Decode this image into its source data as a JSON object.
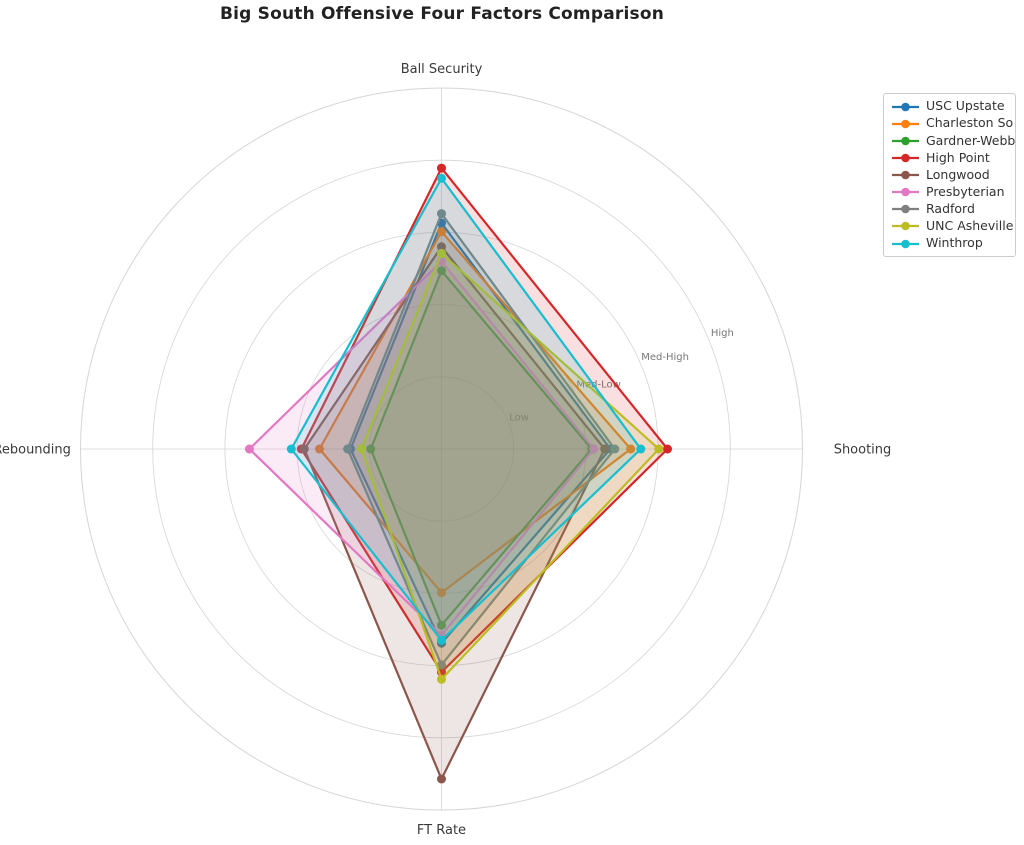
{
  "title": "Big South Offensive Four Factors Comparison",
  "colors": {
    "grid": "#d5d5d5",
    "axis_label_text": "#3a3a3a",
    "tick_label_text": "#777777",
    "title_text": "#222222",
    "legend_border": "#cccccc",
    "background": "#ffffff"
  },
  "legend": {
    "position": "upper right",
    "entries": [
      "USC Upstate",
      "Charleston So",
      "Gardner-Webb",
      "High Point",
      "Longwood",
      "Presbyterian",
      "Radford",
      "UNC Asheville",
      "Winthrop"
    ]
  },
  "chart_data": {
    "type": "radar",
    "projection": "polar",
    "title": "Big South Offensive Four Factors Comparison",
    "axes": [
      "Ball Security",
      "Shooting",
      "FT Rate",
      "Off Rebounding"
    ],
    "radial_ticks": [
      "Low",
      "Med-Low",
      "Med-High",
      "High"
    ],
    "radial_tick_values": [
      1,
      2,
      3,
      4
    ],
    "r_range": [
      0,
      5
    ],
    "grid": true,
    "legend_position": "upper right",
    "fill_alpha": 0.15,
    "series": [
      {
        "name": "USC Upstate",
        "color": "#1f77b4",
        "values": [
          3.13,
          2.34,
          2.69,
          1.26
        ]
      },
      {
        "name": "Charleston So",
        "color": "#ff7f0e",
        "values": [
          3.01,
          2.62,
          1.99,
          1.69
        ]
      },
      {
        "name": "Gardner-Webb",
        "color": "#2ca02c",
        "values": [
          2.47,
          2.08,
          2.44,
          0.98
        ]
      },
      {
        "name": "High Point",
        "color": "#d62728",
        "values": [
          3.89,
          3.13,
          3.09,
          1.94
        ]
      },
      {
        "name": "Longwood",
        "color": "#8c564b",
        "values": [
          2.8,
          2.26,
          4.57,
          1.9
        ]
      },
      {
        "name": "Presbyterian",
        "color": "#e377c2",
        "values": [
          2.6,
          2.11,
          2.58,
          2.66
        ]
      },
      {
        "name": "Radford",
        "color": "#7f7f7f",
        "values": [
          3.26,
          2.4,
          2.99,
          1.3
        ]
      },
      {
        "name": "UNC Asheville",
        "color": "#bcbd22",
        "values": [
          2.71,
          3.01,
          3.19,
          1.11
        ]
      },
      {
        "name": "Winthrop",
        "color": "#17becf",
        "values": [
          3.75,
          2.76,
          2.65,
          2.08
        ]
      }
    ]
  }
}
